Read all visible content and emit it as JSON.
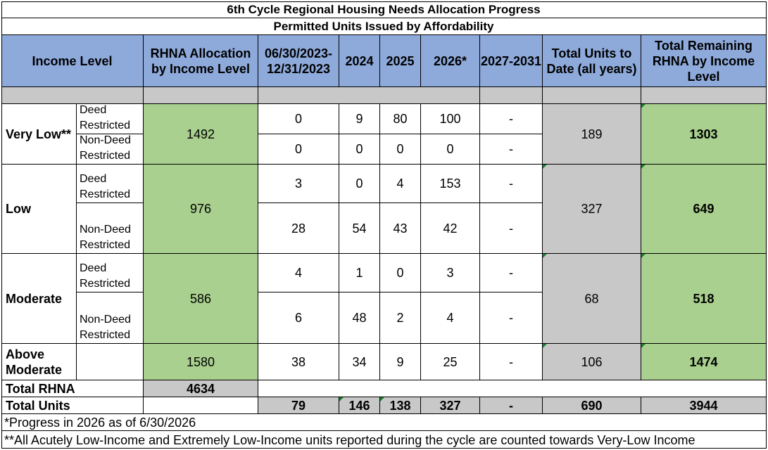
{
  "title1": "6th Cycle Regional Housing Needs Allocation Progress",
  "title2": "Permitted Units Issued by Affordability",
  "headers": {
    "income_level": "Income Level",
    "rhna_allocation": "RHNA Allocation by Income Level",
    "period1": "06/30/2023-12/31/2023",
    "y2024": "2024",
    "y2025": "2025",
    "y2026": "2026*",
    "y2027": "2027-2031",
    "total_to_date": "Total Units to Date (all years)",
    "total_remaining": "Total Remaining RHNA by Income Level"
  },
  "rows": {
    "very_low": {
      "label": "Very Low**",
      "allocation": "1492",
      "deed_label": "Deed Restricted",
      "nondeed_label": "Non-Deed Restricted",
      "deed": [
        "0",
        "9",
        "80",
        "100",
        "-"
      ],
      "nondeed": [
        "0",
        "0",
        "0",
        "0",
        "-"
      ],
      "total": "189",
      "remaining": "1303"
    },
    "low": {
      "label": "Low",
      "allocation": "976",
      "deed_label": "Deed Restricted",
      "nondeed_label": "Non-Deed Restricted",
      "deed": [
        "3",
        "0",
        "4",
        "153",
        "-"
      ],
      "nondeed": [
        "28",
        "54",
        "43",
        "42",
        "-"
      ],
      "total": "327",
      "remaining": "649"
    },
    "moderate": {
      "label": "Moderate",
      "allocation": "586",
      "deed_label": "Deed Restricted",
      "nondeed_label": "Non-Deed Restricted",
      "deed": [
        "4",
        "1",
        "0",
        "3",
        "-"
      ],
      "nondeed": [
        "6",
        "48",
        "2",
        "4",
        "-"
      ],
      "total": "68",
      "remaining": "518"
    },
    "above_moderate": {
      "label": "Above Moderate",
      "allocation": "1580",
      "values": [
        "38",
        "34",
        "9",
        "25",
        "-"
      ],
      "total": "106",
      "remaining": "1474"
    }
  },
  "total_rhna": {
    "label": "Total RHNA",
    "value": "4634"
  },
  "total_units": {
    "label": "Total Units",
    "values": [
      "79",
      "146",
      "138",
      "327",
      "-",
      "690",
      "3944"
    ]
  },
  "notes": [
    "*Progress in 2026 as of 6/30/2026",
    "**All Acutely Low-Income and Extremely Low-Income units reported during the cycle are counted towards Very-Low Income"
  ],
  "colors": {
    "header": "#8eaadb",
    "gray": "#c8c8c8",
    "green": "#a9d08e"
  }
}
